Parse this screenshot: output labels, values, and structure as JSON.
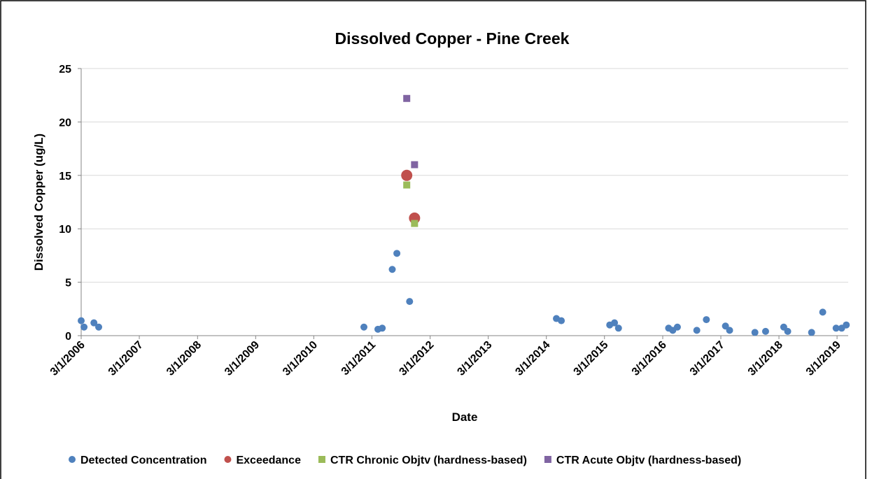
{
  "chart_data": {
    "type": "scatter",
    "title": "Dissolved Copper - Pine Creek",
    "xlabel": "Date",
    "ylabel": "Dissolved Copper (ug/L)",
    "xlim": [
      "3/1/2006",
      "5/10/2019"
    ],
    "xticks": [
      "3/1/2006",
      "3/1/2007",
      "3/1/2008",
      "3/1/2009",
      "3/1/2010",
      "3/1/2011",
      "3/1/2012",
      "3/1/2013",
      "3/1/2014",
      "3/1/2015",
      "3/1/2016",
      "3/1/2017",
      "3/1/2018",
      "3/1/2019"
    ],
    "ylim": [
      0,
      25
    ],
    "yticks": [
      0,
      5,
      10,
      15,
      20,
      25
    ],
    "grid": true,
    "legend": "bottom",
    "series": [
      {
        "name": "Detected Concentration",
        "color": "#4f81bd",
        "marker": "circle",
        "x": [
          "3/1/2006",
          "3/19/2006",
          "5/20/2006",
          "6/19/2006",
          "1/10/2011",
          "4/8/2011",
          "5/5/2011",
          "7/7/2011",
          "8/5/2011",
          "10/24/2011",
          "5/3/2014",
          "6/3/2014",
          "4/3/2015",
          "5/3/2015",
          "5/28/2015",
          "4/7/2016",
          "5/3/2016",
          "6/1/2016",
          "10/1/2016",
          "11/30/2016",
          "3/30/2017",
          "4/25/2017",
          "10/1/2017",
          "12/7/2017",
          "3/31/2018",
          "4/25/2018",
          "9/22/2018",
          "12/1/2018",
          "2/23/2019",
          "3/30/2019",
          "4/28/2019"
        ],
        "values": [
          1.4,
          0.8,
          1.2,
          0.8,
          0.8,
          0.6,
          0.7,
          6.2,
          7.7,
          3.2,
          1.6,
          1.4,
          1.0,
          1.2,
          0.7,
          0.7,
          0.5,
          0.8,
          0.5,
          1.5,
          0.9,
          0.5,
          0.3,
          0.4,
          0.8,
          0.4,
          0.3,
          2.2,
          0.7,
          0.7,
          1.0
        ]
      },
      {
        "name": "Exceedance",
        "color": "#c0504d",
        "marker": "large circle",
        "x": [
          "10/6/2011",
          "11/24/2011"
        ],
        "values": [
          15.0,
          11.0
        ]
      },
      {
        "name": "CTR Chronic Objtv (hardness-based)",
        "color": "#9bbb59",
        "marker": "square",
        "x": [
          "10/6/2011",
          "11/24/2011"
        ],
        "values": [
          14.1,
          10.5
        ]
      },
      {
        "name": "CTR Acute Objtv (hardness-based)",
        "color": "#8064a2",
        "marker": "square",
        "x": [
          "10/6/2011",
          "11/24/2011"
        ],
        "values": [
          22.2,
          16.0
        ]
      }
    ]
  }
}
